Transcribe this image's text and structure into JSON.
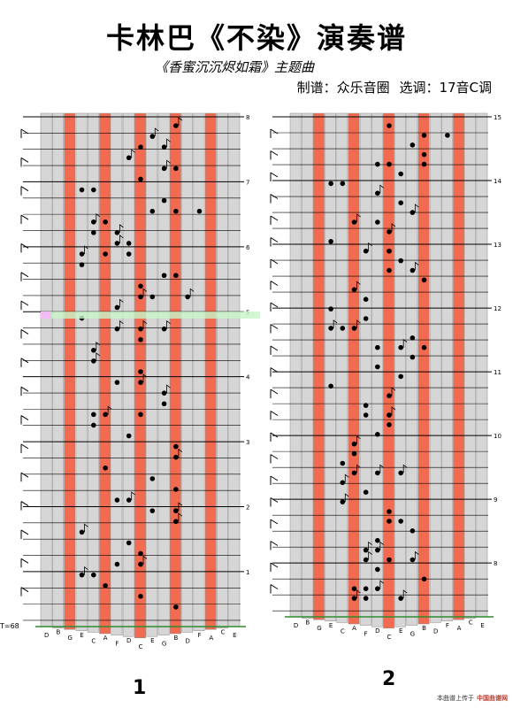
{
  "header": {
    "title": "卡林巴《不染》演奏谱",
    "subtitle": "《香蜜沉沉烬如霜》主题曲",
    "credit_maker": "制谱：众乐音圈",
    "credit_key": "选调：17音C调"
  },
  "sheet1": {
    "page_number": "1",
    "tempo": "T=68",
    "measure_numbers": [
      "8",
      "7",
      "6",
      "5",
      "4",
      "3",
      "2",
      "1"
    ],
    "key_labels": [
      "D",
      "B",
      "G",
      "E",
      "C",
      "A",
      "F",
      "D",
      "C",
      "E",
      "G",
      "B",
      "D",
      "F",
      "A",
      "C",
      "E"
    ]
  },
  "sheet2": {
    "page_number": "2",
    "measure_numbers": [
      "15",
      "14",
      "13",
      "12",
      "11",
      "10",
      "9",
      "8"
    ],
    "key_labels": [
      "D",
      "B",
      "G",
      "E",
      "C",
      "A",
      "F",
      "D",
      "C",
      "E",
      "G",
      "B",
      "D",
      "F",
      "A",
      "C",
      "E"
    ]
  },
  "footer": {
    "note": "本曲谱上传于",
    "brand": "中国曲谱网"
  },
  "colors": {
    "tine_gray": "#d6d6d6",
    "tine_red": "#f26b50",
    "baseline": "#2e8b2e",
    "highlight_green": "#c8f5c8",
    "highlight_pink": "#f6b7f6"
  }
}
